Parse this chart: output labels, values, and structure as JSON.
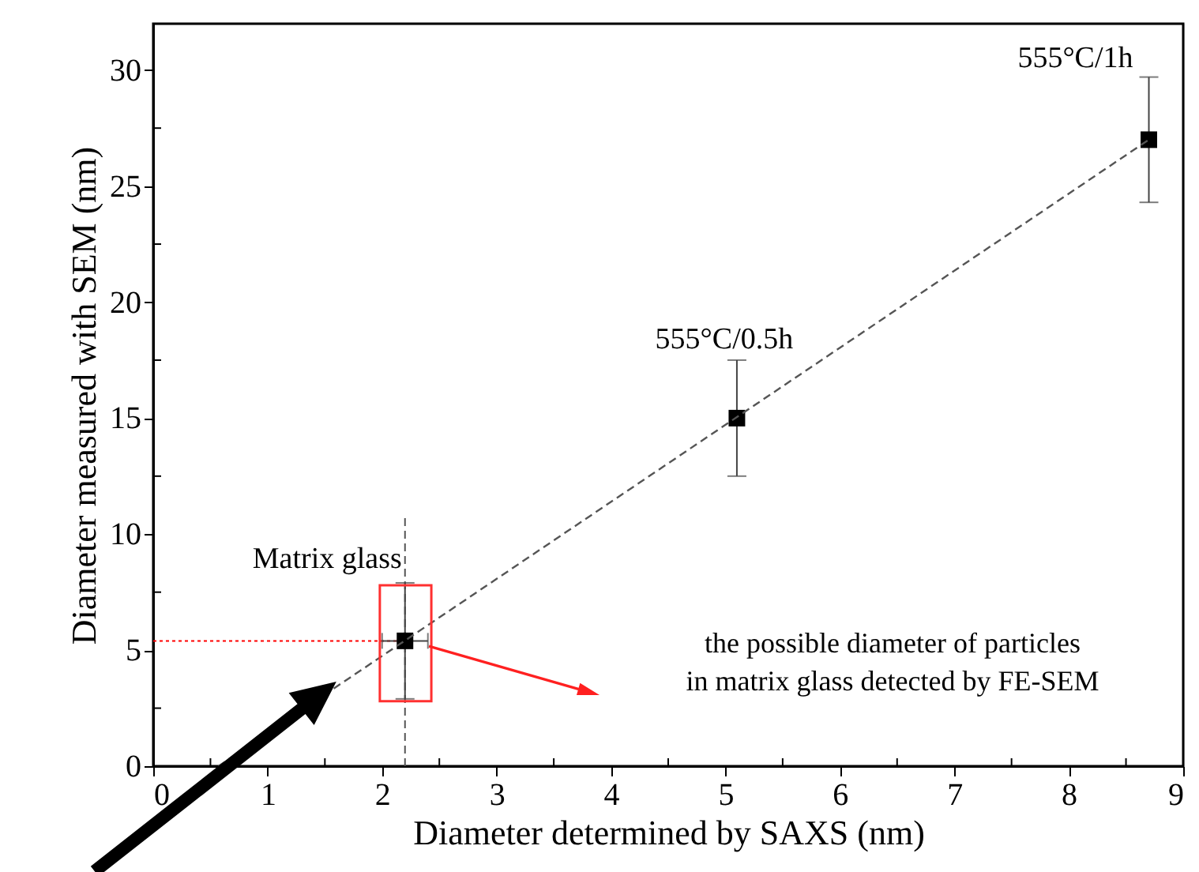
{
  "chart_data": {
    "type": "scatter",
    "xlabel": "Diameter determined by SAXS (nm)",
    "ylabel": "Diameter measured with SEM (nm)",
    "series": [
      {
        "type": "scatter",
        "color": "#000000",
        "x": [
          2.2,
          5.1,
          8.7
        ],
        "values": [
          5.4,
          15.0,
          27.0
        ],
        "errors": [
          2.5,
          2.5,
          2.7
        ],
        "xerrors": [
          0.2,
          null,
          null
        ],
        "marker": "square"
      },
      {
        "type": "line",
        "color": "#555555",
        "x": [
          0.57,
          8.7
        ],
        "values": [
          0,
          27.0
        ],
        "line_style": "dashed",
        "marker": "none"
      }
    ],
    "xlim": [
      0,
      9
    ],
    "ylim": [
      0,
      32
    ],
    "xticks": [
      0,
      {
        "value": 0.5,
        "label": null
      },
      1,
      {
        "value": 1.5,
        "label": null
      },
      2,
      {
        "value": 2.5,
        "label": null
      },
      3,
      {
        "value": 3.5,
        "label": null
      },
      4,
      {
        "value": 4.5,
        "label": null
      },
      5,
      {
        "value": 5.5,
        "label": null
      },
      6,
      {
        "value": 6.5,
        "label": null
      },
      7,
      {
        "value": 7.5,
        "label": null
      },
      8,
      {
        "value": 8.5,
        "label": null
      },
      9
    ],
    "yticks": [
      0,
      {
        "value": 2.5,
        "label": null
      },
      5,
      {
        "value": 7.5,
        "label": null
      },
      10,
      {
        "value": 12.5,
        "label": null
      },
      15,
      {
        "value": 17.5,
        "label": null
      },
      20,
      {
        "value": 22.5,
        "label": null
      },
      25,
      {
        "value": 27.5,
        "label": null
      },
      30
    ],
    "ref_lines": [
      {
        "axis": "x",
        "value": 2.2,
        "color": "#555555",
        "line_style": "dashed"
      },
      {
        "axis": "y",
        "value": 5.4,
        "color": "#ff0000",
        "line_style": "dotted"
      }
    ],
    "annotations": [
      {
        "text": "Matrix glass",
        "x": 2.2,
        "y": 5.4
      },
      {
        "text": "555°C/0.5h",
        "x": 5.1,
        "y": 15.0
      },
      {
        "text": "555°C/1h",
        "x": 8.7,
        "y": 27.0
      },
      "the possible diameter of particles\nin matrix glass detected by FE-SEM"
    ],
    "grid": false
  }
}
